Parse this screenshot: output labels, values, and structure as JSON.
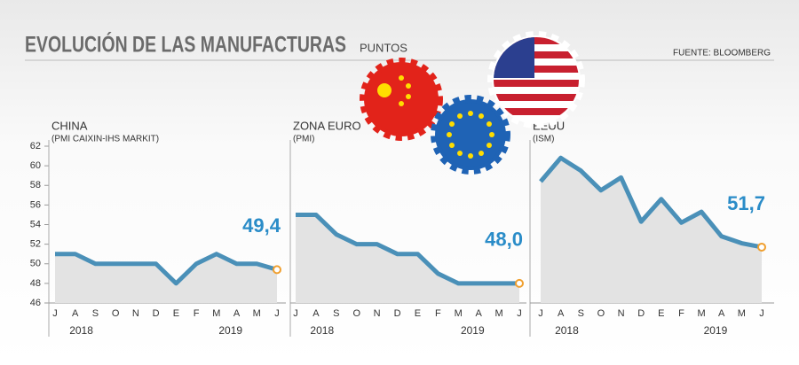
{
  "title": "EVOLUCIÓN DE LAS MANUFACTURAS",
  "subtitle": "PUNTOS",
  "source": "FUENTE: BLOOMBERG",
  "chart_data": [
    {
      "type": "line",
      "title": "CHINA",
      "subtitle": "(PMI CAIXIN-IHS MARKIT)",
      "categories": [
        "J",
        "A",
        "S",
        "O",
        "N",
        "D",
        "E",
        "F",
        "M",
        "A",
        "M",
        "J"
      ],
      "year_labels": [
        "2018",
        "2019"
      ],
      "values": [
        51,
        51,
        50,
        50,
        50,
        50,
        48,
        50,
        51,
        50,
        50,
        49.4
      ],
      "value_labels": [
        null,
        null,
        null,
        null,
        null,
        null,
        null,
        null,
        null,
        null,
        null,
        "49,4"
      ],
      "color": "#4a90b8",
      "ylim": [
        46,
        62
      ],
      "yticks": [
        46,
        48,
        50,
        52,
        54,
        56,
        58,
        60,
        62
      ]
    },
    {
      "type": "line",
      "title": "ZONA EURO",
      "subtitle": "(PMI)",
      "categories": [
        "J",
        "A",
        "S",
        "O",
        "N",
        "D",
        "E",
        "F",
        "M",
        "A",
        "M",
        "J"
      ],
      "year_labels": [
        "2018",
        "2019"
      ],
      "values": [
        55,
        55,
        53,
        52,
        52,
        51,
        51,
        49,
        48,
        48,
        48,
        48.0
      ],
      "value_labels": [
        null,
        null,
        null,
        null,
        null,
        null,
        null,
        null,
        null,
        null,
        null,
        "48,0"
      ],
      "color": "#4a90b8"
    },
    {
      "type": "line",
      "title": "EEUU",
      "subtitle": "(ISM)",
      "categories": [
        "J",
        "A",
        "S",
        "O",
        "N",
        "D",
        "E",
        "F",
        "M",
        "A",
        "M",
        "J"
      ],
      "year_labels": [
        "2018",
        "2019"
      ],
      "values": [
        58.4,
        60.8,
        59.5,
        57.5,
        58.8,
        54.3,
        56.6,
        54.2,
        55.3,
        52.8,
        52.1,
        51.7
      ],
      "value_labels": [
        null,
        null,
        null,
        null,
        null,
        null,
        null,
        null,
        null,
        null,
        null,
        "51,7"
      ],
      "color": "#4a90b8"
    }
  ]
}
